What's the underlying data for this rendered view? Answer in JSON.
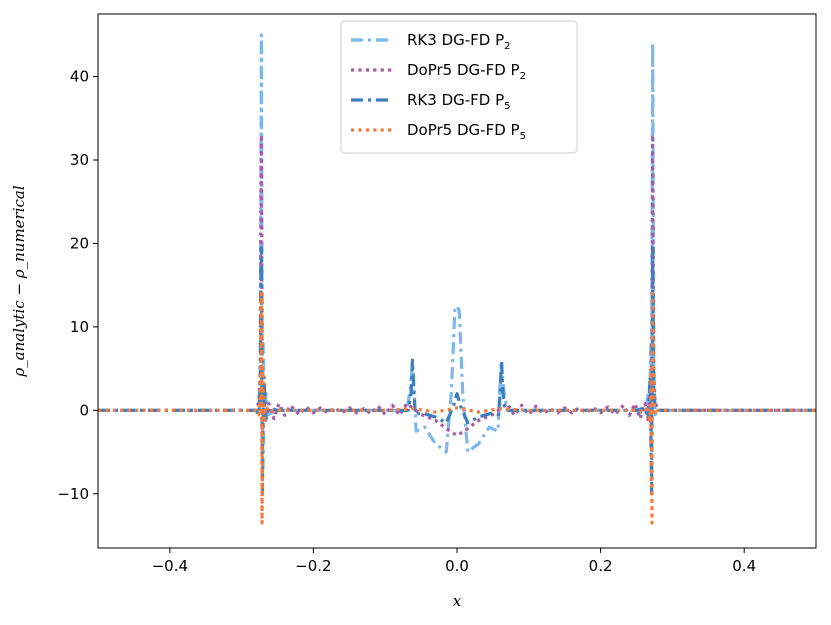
{
  "chart_data": {
    "type": "line",
    "title": "",
    "xlabel": "x",
    "ylabel": "ρ_analytic − ρ_numerical",
    "xlim": [
      -0.5,
      0.5
    ],
    "ylim": [
      -16.5,
      47.5
    ],
    "xticks": [
      -0.4,
      -0.2,
      0.0,
      0.2,
      0.4
    ],
    "xtick_labels": [
      "−0.4",
      "−0.2",
      "0.0",
      "0.2",
      "0.4"
    ],
    "yticks": [
      -10,
      0,
      10,
      20,
      30,
      40
    ],
    "ytick_labels": [
      "−10",
      "0",
      "10",
      "20",
      "30",
      "40"
    ],
    "grid": false,
    "legend_position": "upper-center",
    "series": [
      {
        "name": "RK3 DG-FD P",
        "subscript": "2",
        "color": "#7db8ec",
        "dash": "dashdot",
        "width": 3.2,
        "x": [
          -0.5,
          -0.28,
          -0.276,
          -0.274,
          -0.2725,
          -0.271,
          -0.27,
          -0.268,
          -0.266,
          -0.263,
          -0.25,
          -0.2,
          -0.1,
          -0.07,
          -0.065,
          -0.062,
          -0.06,
          -0.057,
          -0.045,
          -0.03,
          -0.015,
          -0.008,
          -0.003,
          0.0,
          0.003,
          0.008,
          0.015,
          0.03,
          0.045,
          0.057,
          0.06,
          0.062,
          0.065,
          0.07,
          0.1,
          0.2,
          0.25,
          0.263,
          0.266,
          0.268,
          0.27,
          0.271,
          0.2725,
          0.274,
          0.276,
          0.28,
          0.5
        ],
        "y": [
          0,
          0,
          -0.5,
          5,
          45,
          -3,
          8,
          -1,
          2,
          -0.5,
          0,
          0,
          0,
          0,
          2.5,
          5.5,
          3,
          -2.5,
          -2,
          -4,
          -5,
          2,
          12,
          12.5,
          12,
          2,
          -5,
          -4,
          -2,
          -2.5,
          3,
          5.5,
          2.5,
          0,
          0,
          0,
          0,
          -0.5,
          2,
          -1,
          8,
          -3,
          44,
          5,
          -0.5,
          0,
          0
        ]
      },
      {
        "name": "DoPr5 DG-FD P",
        "subscript": "2",
        "color": "#a75bad",
        "dash": "dotted",
        "width": 3.2,
        "x": [
          -0.5,
          -0.28,
          -0.276,
          -0.274,
          -0.2725,
          -0.271,
          -0.269,
          -0.267,
          -0.262,
          -0.255,
          -0.248,
          -0.24,
          -0.232,
          -0.22,
          -0.21,
          -0.2,
          -0.19,
          -0.18,
          -0.17,
          -0.16,
          -0.15,
          -0.14,
          -0.13,
          -0.12,
          -0.11,
          -0.1,
          -0.09,
          -0.08,
          -0.07,
          -0.062,
          -0.05,
          -0.03,
          -0.01,
          0.0,
          0.01,
          0.03,
          0.05,
          0.062,
          0.07,
          0.08,
          0.09,
          0.1,
          0.11,
          0.12,
          0.13,
          0.14,
          0.15,
          0.16,
          0.17,
          0.18,
          0.19,
          0.2,
          0.21,
          0.22,
          0.232,
          0.24,
          0.248,
          0.255,
          0.262,
          0.267,
          0.269,
          0.271,
          0.2725,
          0.274,
          0.276,
          0.28,
          0.5
        ],
        "y": [
          0,
          0,
          1,
          4,
          33,
          -5,
          3,
          -1.5,
          0.8,
          -1,
          0.8,
          -0.6,
          0.6,
          -0.5,
          0.4,
          -0.3,
          0.3,
          -0.3,
          0.3,
          -0.3,
          0.3,
          -0.3,
          0.2,
          -0.4,
          0.5,
          -0.5,
          0.6,
          -0.6,
          0.8,
          0.3,
          -0.5,
          -1.2,
          -2.5,
          -3,
          -2.5,
          -1.2,
          -0.5,
          0.3,
          0.8,
          -0.6,
          0.6,
          -0.5,
          0.5,
          -0.4,
          0.2,
          -0.3,
          0.3,
          -0.3,
          0.3,
          -0.3,
          0.3,
          -0.3,
          0.4,
          -0.5,
          0.6,
          -0.6,
          0.8,
          -1,
          0.8,
          -1.5,
          3,
          -5,
          33,
          4,
          1,
          0,
          0
        ]
      },
      {
        "name": "RK3 DG-FD P",
        "subscript": "5",
        "color": "#3d7fbd",
        "dash": "dashdot",
        "width": 3.2,
        "x": [
          -0.5,
          -0.28,
          -0.276,
          -0.274,
          -0.2725,
          -0.271,
          -0.269,
          -0.266,
          -0.262,
          -0.25,
          -0.1,
          -0.068,
          -0.064,
          -0.062,
          -0.06,
          -0.058,
          -0.05,
          -0.03,
          -0.015,
          -0.005,
          0.0,
          0.005,
          0.015,
          0.03,
          0.05,
          0.058,
          0.06,
          0.062,
          0.064,
          0.068,
          0.1,
          0.25,
          0.262,
          0.266,
          0.269,
          0.271,
          0.2725,
          0.274,
          0.276,
          0.28,
          0.5
        ],
        "y": [
          0,
          0,
          -0.5,
          3,
          19.5,
          -10,
          4,
          -1,
          0.3,
          0,
          0,
          0,
          2,
          6,
          2,
          -0.5,
          -0.3,
          -0.8,
          -1.5,
          0.5,
          2,
          0.5,
          -1.5,
          -0.8,
          -0.3,
          -0.5,
          2,
          6,
          2,
          0,
          0,
          0,
          0.3,
          -1,
          4,
          -10,
          19.5,
          3,
          -0.5,
          0,
          0
        ]
      },
      {
        "name": "DoPr5 DG-FD P",
        "subscript": "5",
        "color": "#f07e3e",
        "dash": "dotted",
        "width": 3.2,
        "x": [
          -0.5,
          -0.28,
          -0.276,
          -0.274,
          -0.2725,
          -0.2715,
          -0.2705,
          -0.269,
          -0.266,
          -0.262,
          -0.25,
          -0.1,
          -0.06,
          -0.03,
          0.0,
          0.03,
          0.06,
          0.1,
          0.25,
          0.262,
          0.266,
          0.269,
          0.2705,
          0.2715,
          0.2725,
          0.274,
          0.276,
          0.28,
          0.5
        ],
        "y": [
          0,
          0,
          -0.5,
          2,
          14,
          -13.5,
          5,
          -1.5,
          0.5,
          -0.2,
          0,
          0,
          0.2,
          -0.2,
          0.3,
          -0.2,
          0.2,
          0,
          0,
          -0.2,
          0.5,
          -1.5,
          5,
          -13.5,
          14,
          2,
          -0.5,
          0,
          0
        ]
      }
    ]
  }
}
